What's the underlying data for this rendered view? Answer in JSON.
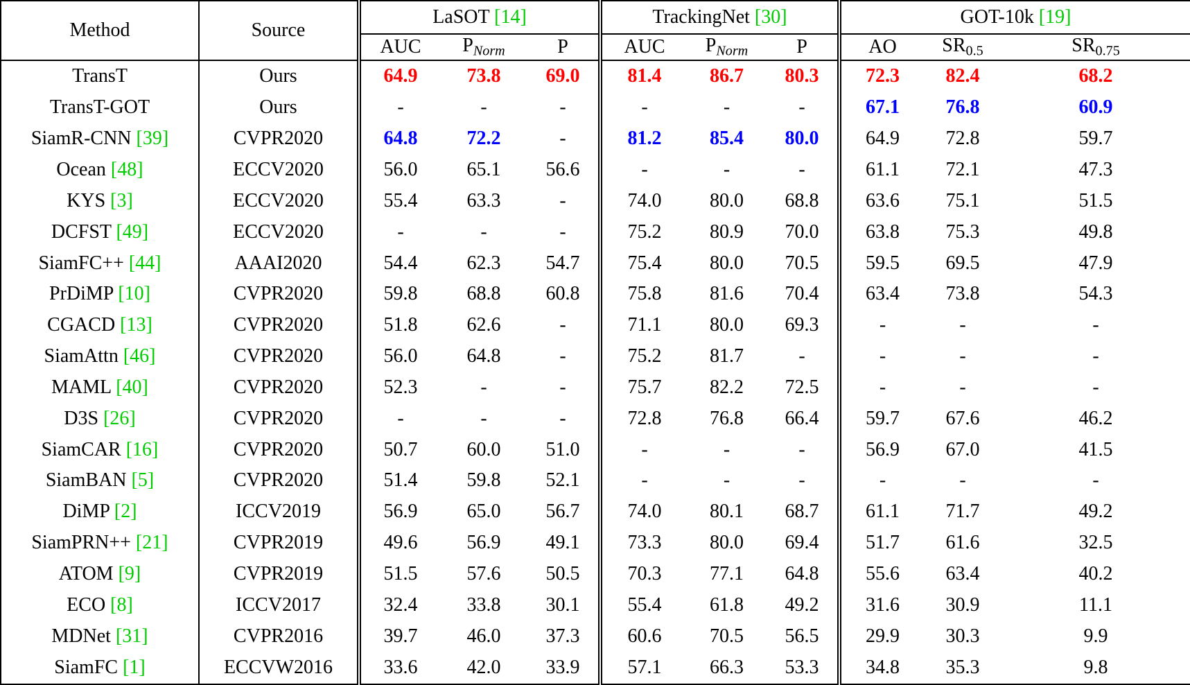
{
  "colors": {
    "best": "#ff0000",
    "second": "#0000ff",
    "cite": "#00cc00",
    "text": "#000000",
    "border": "#000000",
    "background": "#ffffff"
  },
  "table": {
    "method_header": "Method",
    "source_header": "Source",
    "groups": [
      {
        "id": "lasot",
        "label": "LaSOT",
        "cite": "[14]"
      },
      {
        "id": "trackingnet",
        "label": "TrackingNet",
        "cite": "[30]"
      },
      {
        "id": "got10k",
        "label": "GOT-10k",
        "cite": "[19]"
      }
    ],
    "subheaders": [
      {
        "base": "AUC",
        "sub": "",
        "italic_sub": false,
        "group_start": true
      },
      {
        "base": "P",
        "sub": "Norm",
        "italic_sub": true,
        "group_start": false
      },
      {
        "base": "P",
        "sub": "",
        "italic_sub": false,
        "group_start": false
      },
      {
        "base": "AUC",
        "sub": "",
        "italic_sub": false,
        "group_start": true
      },
      {
        "base": "P",
        "sub": "Norm",
        "italic_sub": true,
        "group_start": false
      },
      {
        "base": "P",
        "sub": "",
        "italic_sub": false,
        "group_start": false
      },
      {
        "base": "AO",
        "sub": "",
        "italic_sub": false,
        "group_start": true
      },
      {
        "base": "SR",
        "sub": "0.5",
        "italic_sub": false,
        "group_start": false
      },
      {
        "base": "SR",
        "sub": "0.75",
        "italic_sub": false,
        "group_start": false
      }
    ],
    "rows": [
      {
        "method": "TransT",
        "cite": "",
        "source": "Ours",
        "values": [
          "64.9",
          "73.8",
          "69.0",
          "81.4",
          "86.7",
          "80.3",
          "72.3",
          "82.4",
          "68.2"
        ],
        "styles": [
          "r",
          "r",
          "r",
          "r",
          "r",
          "r",
          "r",
          "r",
          "r"
        ]
      },
      {
        "method": "TransT-GOT",
        "cite": "",
        "source": "Ours",
        "values": [
          "-",
          "-",
          "-",
          "-",
          "-",
          "-",
          "67.1",
          "76.8",
          "60.9"
        ],
        "styles": [
          "",
          "",
          "",
          "",
          "",
          "",
          "b",
          "b",
          "b"
        ]
      },
      {
        "method": "SiamR-CNN",
        "cite": "[39]",
        "source": "CVPR2020",
        "values": [
          "64.8",
          "72.2",
          "-",
          "81.2",
          "85.4",
          "80.0",
          "64.9",
          "72.8",
          "59.7"
        ],
        "styles": [
          "b",
          "b",
          "",
          "b",
          "b",
          "b",
          "",
          "",
          ""
        ]
      },
      {
        "method": "Ocean",
        "cite": "[48]",
        "source": "ECCV2020",
        "values": [
          "56.0",
          "65.1",
          "56.6",
          "-",
          "-",
          "-",
          "61.1",
          "72.1",
          "47.3"
        ],
        "styles": [
          "",
          "",
          "",
          "",
          "",
          "",
          "",
          "",
          ""
        ]
      },
      {
        "method": "KYS",
        "cite": "[3]",
        "source": "ECCV2020",
        "values": [
          "55.4",
          "63.3",
          "-",
          "74.0",
          "80.0",
          "68.8",
          "63.6",
          "75.1",
          "51.5"
        ],
        "styles": [
          "",
          "",
          "",
          "",
          "",
          "",
          "",
          "",
          ""
        ]
      },
      {
        "method": "DCFST",
        "cite": "[49]",
        "source": "ECCV2020",
        "values": [
          "-",
          "-",
          "-",
          "75.2",
          "80.9",
          "70.0",
          "63.8",
          "75.3",
          "49.8"
        ],
        "styles": [
          "",
          "",
          "",
          "",
          "",
          "",
          "",
          "",
          ""
        ]
      },
      {
        "method": "SiamFC++",
        "cite": "[44]",
        "source": "AAAI2020",
        "values": [
          "54.4",
          "62.3",
          "54.7",
          "75.4",
          "80.0",
          "70.5",
          "59.5",
          "69.5",
          "47.9"
        ],
        "styles": [
          "",
          "",
          "",
          "",
          "",
          "",
          "",
          "",
          ""
        ]
      },
      {
        "method": "PrDiMP",
        "cite": "[10]",
        "source": "CVPR2020",
        "values": [
          "59.8",
          "68.8",
          "60.8",
          "75.8",
          "81.6",
          "70.4",
          "63.4",
          "73.8",
          "54.3"
        ],
        "styles": [
          "",
          "",
          "",
          "",
          "",
          "",
          "",
          "",
          ""
        ]
      },
      {
        "method": "CGACD",
        "cite": "[13]",
        "source": "CVPR2020",
        "values": [
          "51.8",
          "62.6",
          "-",
          "71.1",
          "80.0",
          "69.3",
          "-",
          "-",
          "-"
        ],
        "styles": [
          "",
          "",
          "",
          "",
          "",
          "",
          "",
          "",
          ""
        ]
      },
      {
        "method": "SiamAttn",
        "cite": "[46]",
        "source": "CVPR2020",
        "values": [
          "56.0",
          "64.8",
          "-",
          "75.2",
          "81.7",
          "-",
          "-",
          "-",
          "-"
        ],
        "styles": [
          "",
          "",
          "",
          "",
          "",
          "",
          "",
          "",
          ""
        ]
      },
      {
        "method": "MAML",
        "cite": "[40]",
        "source": "CVPR2020",
        "values": [
          "52.3",
          "-",
          "-",
          "75.7",
          "82.2",
          "72.5",
          "-",
          "-",
          "-"
        ],
        "styles": [
          "",
          "",
          "",
          "",
          "",
          "",
          "",
          "",
          ""
        ]
      },
      {
        "method": "D3S",
        "cite": "[26]",
        "source": "CVPR2020",
        "values": [
          "-",
          "-",
          "-",
          "72.8",
          "76.8",
          "66.4",
          "59.7",
          "67.6",
          "46.2"
        ],
        "styles": [
          "",
          "",
          "",
          "",
          "",
          "",
          "",
          "",
          ""
        ]
      },
      {
        "method": "SiamCAR",
        "cite": "[16]",
        "source": "CVPR2020",
        "values": [
          "50.7",
          "60.0",
          "51.0",
          "-",
          "-",
          "-",
          "56.9",
          "67.0",
          "41.5"
        ],
        "styles": [
          "",
          "",
          "",
          "",
          "",
          "",
          "",
          "",
          ""
        ]
      },
      {
        "method": "SiamBAN",
        "cite": "[5]",
        "source": "CVPR2020",
        "values": [
          "51.4",
          "59.8",
          "52.1",
          "-",
          "-",
          "-",
          "-",
          "-",
          "-"
        ],
        "styles": [
          "",
          "",
          "",
          "",
          "",
          "",
          "",
          "",
          ""
        ]
      },
      {
        "method": "DiMP",
        "cite": "[2]",
        "source": "ICCV2019",
        "values": [
          "56.9",
          "65.0",
          "56.7",
          "74.0",
          "80.1",
          "68.7",
          "61.1",
          "71.7",
          "49.2"
        ],
        "styles": [
          "",
          "",
          "",
          "",
          "",
          "",
          "",
          "",
          ""
        ]
      },
      {
        "method": "SiamPRN++",
        "cite": "[21]",
        "source": "CVPR2019",
        "values": [
          "49.6",
          "56.9",
          "49.1",
          "73.3",
          "80.0",
          "69.4",
          "51.7",
          "61.6",
          "32.5"
        ],
        "styles": [
          "",
          "",
          "",
          "",
          "",
          "",
          "",
          "",
          ""
        ]
      },
      {
        "method": "ATOM",
        "cite": "[9]",
        "source": "CVPR2019",
        "values": [
          "51.5",
          "57.6",
          "50.5",
          "70.3",
          "77.1",
          "64.8",
          "55.6",
          "63.4",
          "40.2"
        ],
        "styles": [
          "",
          "",
          "",
          "",
          "",
          "",
          "",
          "",
          ""
        ]
      },
      {
        "method": "ECO",
        "cite": "[8]",
        "source": "ICCV2017",
        "values": [
          "32.4",
          "33.8",
          "30.1",
          "55.4",
          "61.8",
          "49.2",
          "31.6",
          "30.9",
          "11.1"
        ],
        "styles": [
          "",
          "",
          "",
          "",
          "",
          "",
          "",
          "",
          ""
        ]
      },
      {
        "method": "MDNet",
        "cite": "[31]",
        "source": "CVPR2016",
        "values": [
          "39.7",
          "46.0",
          "37.3",
          "60.6",
          "70.5",
          "56.5",
          "29.9",
          "30.3",
          "9.9"
        ],
        "styles": [
          "",
          "",
          "",
          "",
          "",
          "",
          "",
          "",
          ""
        ]
      },
      {
        "method": "SiamFC",
        "cite": "[1]",
        "source": "ECCVW2016",
        "values": [
          "33.6",
          "42.0",
          "33.9",
          "57.1",
          "66.3",
          "53.3",
          "34.8",
          "35.3",
          "9.8"
        ],
        "styles": [
          "",
          "",
          "",
          "",
          "",
          "",
          "",
          "",
          ""
        ]
      }
    ]
  }
}
